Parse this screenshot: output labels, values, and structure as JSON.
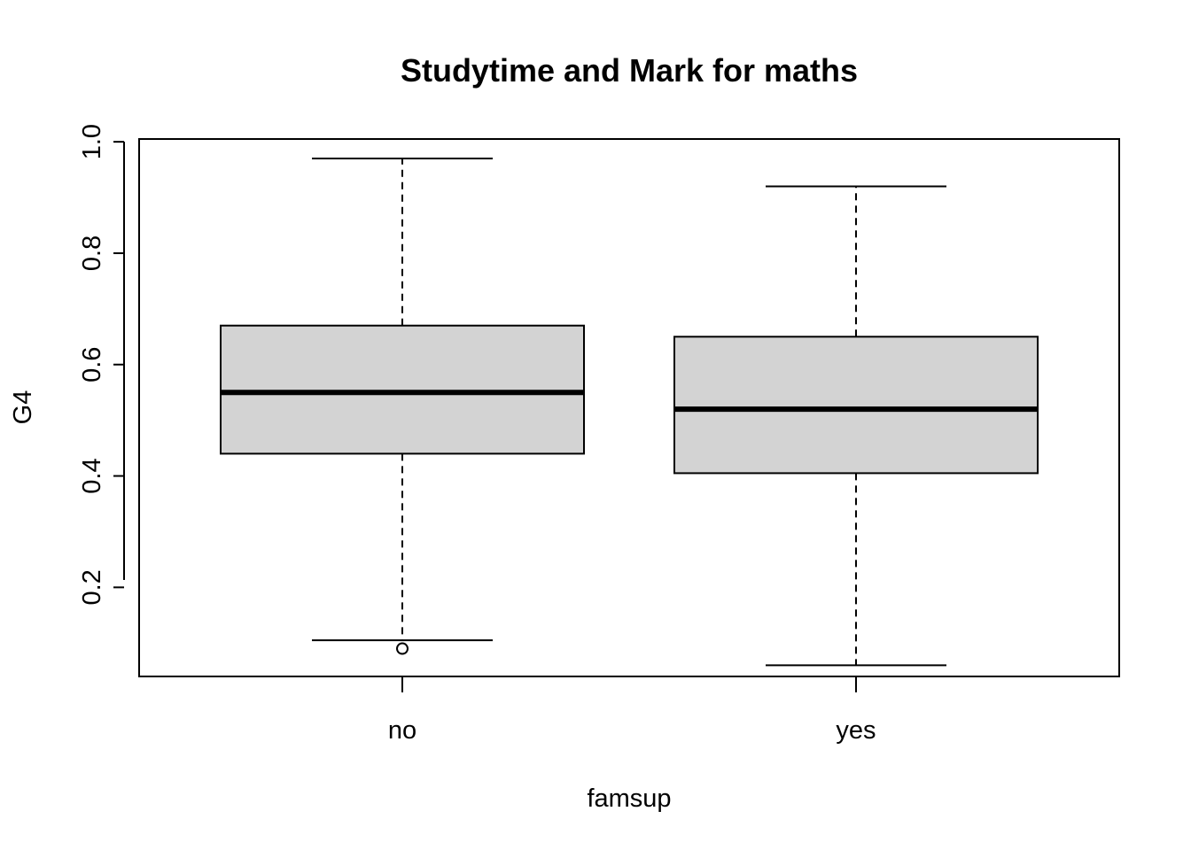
{
  "chart_data": {
    "type": "boxplot",
    "title": "Studytime and Mark for maths",
    "xlabel": "famsup",
    "ylabel": "G4",
    "categories": [
      "no",
      "yes"
    ],
    "boxes": [
      {
        "category": "no",
        "whisker_low": 0.105,
        "q1": 0.44,
        "median": 0.55,
        "q3": 0.67,
        "whisker_high": 0.97,
        "outliers": [
          0.09
        ]
      },
      {
        "category": "yes",
        "whisker_low": 0.06,
        "q1": 0.405,
        "median": 0.52,
        "q3": 0.65,
        "whisker_high": 0.92,
        "outliers": []
      }
    ],
    "y_ticks": [
      "0.2",
      "0.4",
      "0.6",
      "0.8",
      "1.0"
    ],
    "ylim": [
      0.04,
      1.005
    ],
    "box_fill": "#d3d3d3",
    "grid": false,
    "legend": false
  }
}
